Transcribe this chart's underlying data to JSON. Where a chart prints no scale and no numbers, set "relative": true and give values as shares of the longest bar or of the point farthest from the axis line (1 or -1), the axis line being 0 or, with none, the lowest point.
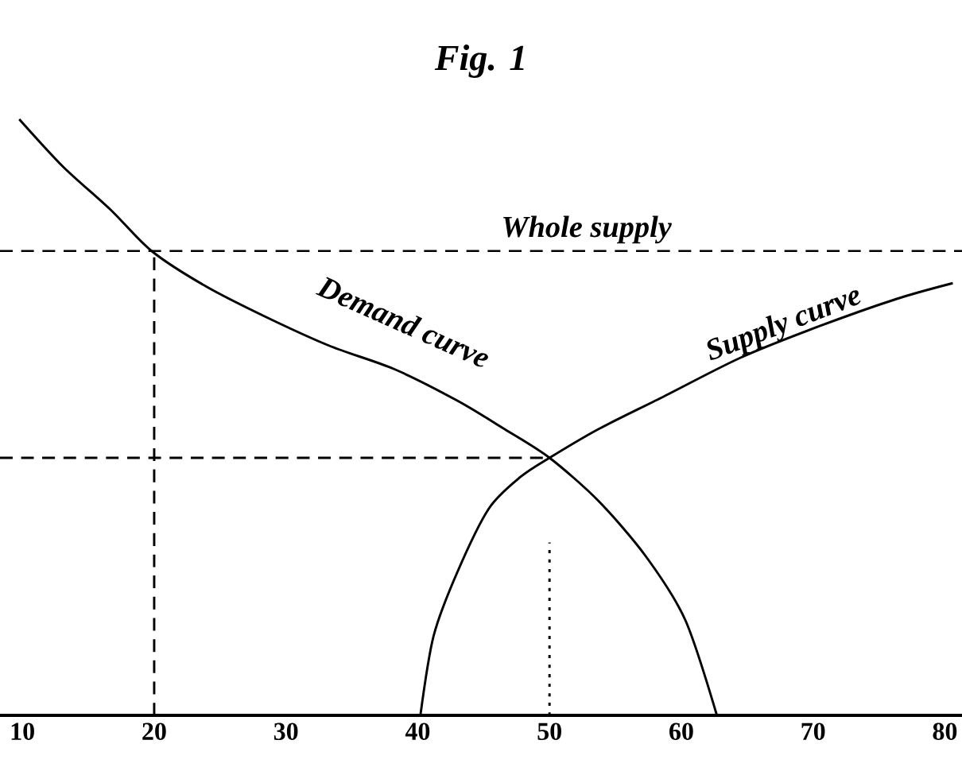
{
  "chart_data": {
    "type": "line",
    "title": "Fig. 1",
    "relative": true,
    "xlim": [
      8.3,
      81.3
    ],
    "xticks": [
      10,
      20,
      30,
      40,
      50,
      60,
      70,
      80
    ],
    "series": [
      {
        "color": "#000000",
        "line_style": "solid",
        "x": [
          9.76,
          13.1,
          16.7,
          19.8,
          23.9,
          28.6,
          33.4,
          38.2,
          43.0,
          46.6,
          50.0,
          53.7,
          57.3,
          60.3,
          62.7
        ],
        "values": [
          1.0,
          0.92,
          0.848,
          0.779,
          0.72,
          0.667,
          0.619,
          0.581,
          0.528,
          0.48,
          0.432,
          0.36,
          0.267,
          0.16,
          0.0
        ]
      },
      {
        "color": "#000000",
        "line_style": "solid",
        "x": [
          40.2,
          41.2,
          43.0,
          45.4,
          47.8,
          50.0,
          53.7,
          58.5,
          64.5,
          70.5,
          76.4,
          80.6
        ],
        "values": [
          0.0,
          0.133,
          0.24,
          0.347,
          0.4,
          0.432,
          0.48,
          0.533,
          0.6,
          0.653,
          0.699,
          0.725
        ]
      },
      {
        "color": "#000000",
        "line_style": "dashed",
        "x": [
          20,
          20
        ],
        "values": [
          0.0,
          0.779
        ]
      },
      {
        "color": "#000000",
        "line_style": "dashed",
        "x": [
          8.3,
          50
        ],
        "values": [
          0.432,
          0.432
        ]
      },
      {
        "color": "#000000",
        "line_style": "dotted",
        "x": [
          50,
          50
        ],
        "values": [
          0.0,
          0.29
        ]
      }
    ],
    "ref_lines": [
      {
        "axis": "y",
        "value": 0.779,
        "label": "Whole supply",
        "color": "#000000",
        "line_style": "dashed"
      }
    ],
    "annotations": [
      "Demand curve",
      "Supply curve"
    ]
  }
}
